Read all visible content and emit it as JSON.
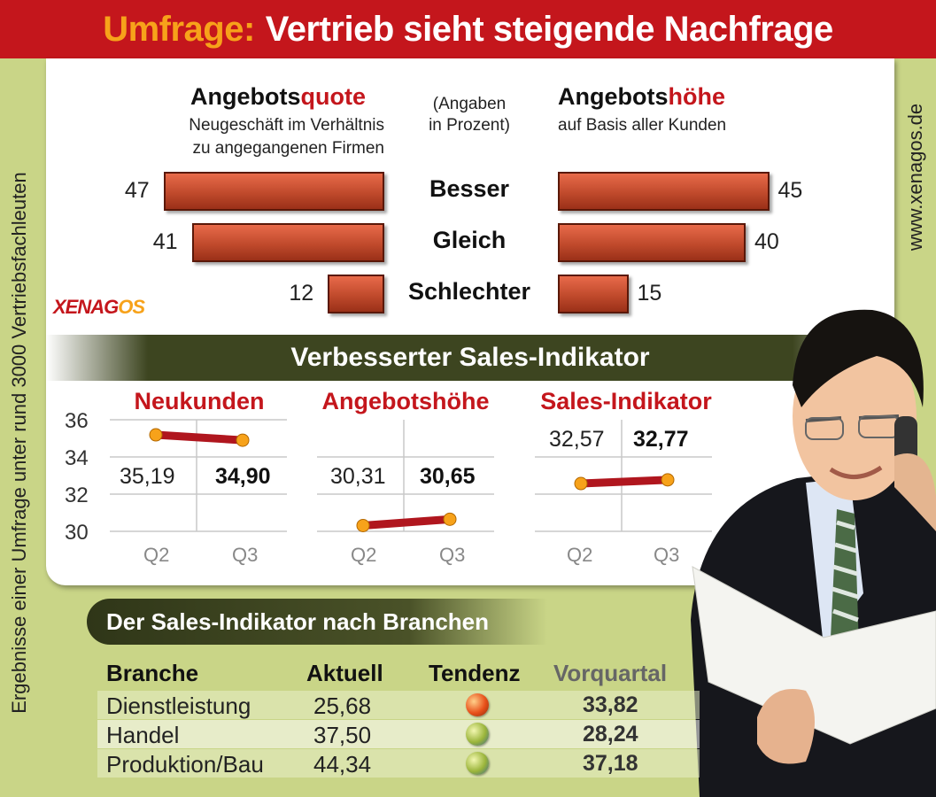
{
  "title": {
    "prefix": "Umfrage:",
    "main": "Vertrieb sieht steigende Nachfrage"
  },
  "side_left": "Ergebnisse einer Umfrage unter rund 3000 Vertriebsfachleuten",
  "side_right": "www.xenagos.de",
  "logo": {
    "main": "XENAG",
    "accent": "OS"
  },
  "unit_note": [
    "(Angaben",
    "in Prozent)"
  ],
  "colors": {
    "red": "#c4161c",
    "orange": "#f7a21a",
    "olive": "#3d4520",
    "green_bg": "#c9d587",
    "bar": "#c04a2c"
  },
  "chart_data": [
    {
      "type": "bar",
      "title_parts": [
        "Angebots",
        "quote"
      ],
      "subtitle": [
        "Neugeschäft im Verhältnis",
        "zu angegangenen Firmen"
      ],
      "categories": [
        "Besser",
        "Gleich",
        "Schlechter"
      ],
      "values": [
        47,
        41,
        12
      ]
    },
    {
      "type": "bar",
      "title_parts": [
        "Angebots",
        "höhe"
      ],
      "subtitle": [
        "auf Basis aller Kunden"
      ],
      "categories": [
        "Besser",
        "Gleich",
        "Schlechter"
      ],
      "values": [
        45,
        40,
        15
      ]
    },
    {
      "type": "line",
      "banner": "Verbesserter Sales-Indikator",
      "yticks": [
        "36",
        "34",
        "32",
        "30"
      ],
      "ylim": [
        30,
        36
      ],
      "panels": [
        {
          "title": "Neukunden",
          "x": [
            "Q2",
            "Q3"
          ],
          "values": [
            35.19,
            34.9
          ],
          "labels": [
            "35,19",
            "34,90"
          ]
        },
        {
          "title": "Angebotshöhe",
          "x": [
            "Q2",
            "Q3"
          ],
          "values": [
            30.31,
            30.65
          ],
          "labels": [
            "30,31",
            "30,65"
          ]
        },
        {
          "title": "Sales-Indikator",
          "x": [
            "Q2",
            "Q3"
          ],
          "values": [
            32.57,
            32.77
          ],
          "labels": [
            "32,57",
            "32,77"
          ]
        }
      ]
    },
    {
      "type": "table",
      "title": "Der Sales-Indikator nach Branchen",
      "headers": [
        "Branche",
        "Aktuell",
        "Tendenz",
        "Vorquartal"
      ],
      "rows": [
        {
          "branche": "Dienstleistung",
          "aktuell": "25,68",
          "tendenz": "down",
          "vorquartal": "33,82"
        },
        {
          "branche": "Handel",
          "aktuell": "37,50",
          "tendenz": "up",
          "vorquartal": "28,24"
        },
        {
          "branche": "Produktion/Bau",
          "aktuell": "44,34",
          "tendenz": "up",
          "vorquartal": "37,18"
        }
      ]
    }
  ]
}
